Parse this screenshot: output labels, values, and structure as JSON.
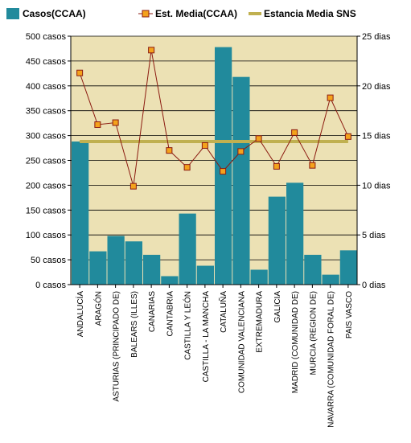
{
  "chart_data": {
    "type": "bar",
    "categories": [
      "ANDALUCÍA",
      "ARAGÓN",
      "ASTURIAS (PRINCIPADO DE)",
      "BALEARS (ILLES)",
      "CANARIAS",
      "CANTABRIA",
      "CASTILLA Y LEÓN",
      "CASTILLA - LA MANCHA",
      "CATALUÑA",
      "COMUNIDAD VALENCIANA",
      "EXTREMADURA",
      "GALICIA",
      "MADRID (COMUNIDAD DE)",
      "MURCIA (REGION DE)",
      "NAVARRA (COMUNIDAD FORAL DE)",
      "PAIS VASCO"
    ],
    "series": [
      {
        "name": "Casos(CCAA)",
        "type": "bar",
        "axis": "left",
        "color": "#218a9c",
        "values": [
          288,
          67,
          98,
          87,
          60,
          17,
          143,
          38,
          478,
          418,
          30,
          177,
          205,
          60,
          20,
          69
        ]
      },
      {
        "name": "Est. Media(CCAA)",
        "type": "line",
        "axis": "right",
        "color": "#8b1a10",
        "marker_color": "#f4a21c",
        "values": [
          21.3,
          16.1,
          16.3,
          9.9,
          23.6,
          13.5,
          11.8,
          14.0,
          11.4,
          13.4,
          14.7,
          11.9,
          15.3,
          12.0,
          18.8,
          14.9
        ]
      },
      {
        "name": "Estancia Media SNS",
        "type": "line",
        "axis": "right",
        "color": "#c0b050",
        "values": [
          14.4,
          14.4,
          14.4,
          14.4,
          14.4,
          14.4,
          14.4,
          14.4,
          14.4,
          14.4,
          14.4,
          14.4,
          14.4,
          14.4,
          14.4,
          14.4
        ]
      }
    ],
    "y_left": {
      "ticks": [
        0,
        50,
        100,
        150,
        200,
        250,
        300,
        350,
        400,
        450,
        500
      ],
      "tick_labels": [
        "0 casos",
        "50 casos",
        "100 casos",
        "150 casos",
        "200 casos",
        "250 casos",
        "300 casos",
        "350 casos",
        "400 casos",
        "450 casos",
        "500 casos"
      ],
      "ylim": [
        0,
        500
      ]
    },
    "y_right": {
      "ticks": [
        0,
        5,
        10,
        15,
        20,
        25
      ],
      "tick_labels": [
        "0 dias",
        "5 dias",
        "10 dias",
        "15 dias",
        "20 dias",
        "25 dias"
      ],
      "ylim": [
        0,
        25
      ]
    },
    "title": "",
    "xlabel": "",
    "ylabel": "",
    "grid": true,
    "legend_position": "top",
    "plot_background": "#ece1b4"
  }
}
